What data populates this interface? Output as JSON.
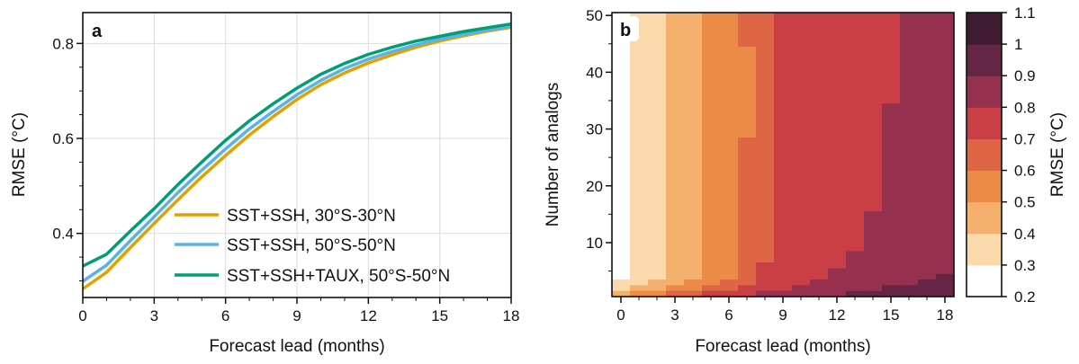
{
  "chart_data": [
    {
      "panel": "a",
      "type": "line",
      "xlabel": "Forecast lead (months)",
      "ylabel": "RMSE (°C)",
      "xlim": [
        0,
        18
      ],
      "ylim": [
        0.265,
        0.865
      ],
      "xticks": [
        0,
        3,
        6,
        9,
        12,
        15,
        18
      ],
      "yticks": [
        0.4,
        0.6,
        0.8
      ],
      "ytick_labels": [
        "0.4",
        "0.6",
        "0.8"
      ],
      "grid": true,
      "legend_position": "bottom-right",
      "x": [
        0,
        1,
        2,
        3,
        4,
        5,
        6,
        7,
        8,
        9,
        10,
        11,
        12,
        13,
        14,
        15,
        16,
        17,
        18
      ],
      "series": [
        {
          "name": "SST+SSH, 30°S-30°N",
          "color": "#E69F00",
          "values": [
            0.283,
            0.318,
            0.37,
            0.421,
            0.471,
            0.519,
            0.564,
            0.607,
            0.646,
            0.682,
            0.713,
            0.738,
            0.759,
            0.776,
            0.792,
            0.805,
            0.816,
            0.826,
            0.834
          ]
        },
        {
          "name": "SST+SSH, 50°S-50°N",
          "color": "#56B4E9",
          "values": [
            0.299,
            0.333,
            0.385,
            0.435,
            0.486,
            0.533,
            0.578,
            0.62,
            0.657,
            0.692,
            0.722,
            0.747,
            0.767,
            0.783,
            0.797,
            0.809,
            0.819,
            0.828,
            0.836
          ]
        },
        {
          "name": "SST+SSH+TAUX, 50°S-50°N",
          "color": "#009E73",
          "values": [
            0.331,
            0.356,
            0.405,
            0.452,
            0.503,
            0.55,
            0.596,
            0.637,
            0.673,
            0.706,
            0.735,
            0.758,
            0.777,
            0.792,
            0.805,
            0.815,
            0.825,
            0.833,
            0.841
          ]
        }
      ]
    },
    {
      "panel": "b",
      "type": "heatmap",
      "xlabel": "Forecast lead (months)",
      "ylabel": "Number of analogs",
      "xlim": [
        -0.5,
        18.5
      ],
      "ylim": [
        0.5,
        50.5
      ],
      "xticks": [
        0,
        3,
        6,
        9,
        12,
        15,
        18
      ],
      "yticks": [
        10,
        20,
        30,
        40,
        50
      ],
      "colorbar": {
        "label": "RMSE (°C)",
        "boundaries": [
          0.2,
          0.3,
          0.4,
          0.5,
          0.6,
          0.7,
          0.8,
          0.9,
          1.0,
          1.1
        ],
        "tick_labels": [
          "0.2",
          "0.3",
          "0.4",
          "0.5",
          "0.6",
          "0.7",
          "0.8",
          "0.9",
          "1",
          "1.1"
        ],
        "colors": [
          "#ffffff",
          "#fbd9aa",
          "#f5b06e",
          "#ec8a48",
          "#de6645",
          "#c93f45",
          "#95314f",
          "#652545",
          "#3e1b30"
        ]
      },
      "level_rows": [
        {
          "from": 45,
          "to": 50,
          "levels": [
            0,
            1,
            1,
            2,
            2,
            3,
            3,
            4,
            4,
            5,
            5,
            5,
            5,
            5,
            5,
            5,
            6,
            6,
            6
          ]
        },
        {
          "from": 35,
          "to": 44,
          "levels": [
            0,
            1,
            1,
            2,
            2,
            3,
            3,
            3,
            4,
            5,
            5,
            5,
            5,
            5,
            5,
            5,
            6,
            6,
            6
          ]
        },
        {
          "from": 29,
          "to": 34,
          "levels": [
            0,
            1,
            1,
            2,
            2,
            3,
            3,
            3,
            4,
            5,
            5,
            5,
            5,
            5,
            5,
            6,
            6,
            6,
            6
          ]
        },
        {
          "from": 16,
          "to": 28,
          "levels": [
            0,
            1,
            1,
            2,
            2,
            3,
            3,
            4,
            4,
            5,
            5,
            5,
            5,
            5,
            5,
            6,
            6,
            6,
            6
          ]
        },
        {
          "from": 11,
          "to": 15,
          "levels": [
            0,
            1,
            1,
            2,
            2,
            3,
            3,
            4,
            4,
            5,
            5,
            5,
            5,
            5,
            6,
            6,
            6,
            6,
            6
          ]
        },
        {
          "from": 9,
          "to": 10,
          "levels": [
            0,
            1,
            1,
            2,
            2,
            3,
            3,
            4,
            4,
            5,
            5,
            5,
            5,
            5,
            6,
            6,
            6,
            6,
            6
          ]
        },
        {
          "from": 7,
          "to": 8,
          "levels": [
            0,
            1,
            1,
            2,
            2,
            3,
            3,
            4,
            4,
            5,
            5,
            5,
            5,
            6,
            6,
            6,
            6,
            6,
            6
          ]
        },
        {
          "from": 6,
          "to": 6,
          "levels": [
            0,
            1,
            1,
            2,
            2,
            3,
            3,
            4,
            5,
            5,
            5,
            5,
            5,
            6,
            6,
            6,
            6,
            6,
            6
          ]
        },
        {
          "from": 5,
          "to": 5,
          "levels": [
            0,
            1,
            1,
            2,
            2,
            3,
            3,
            4,
            5,
            5,
            5,
            5,
            6,
            6,
            6,
            6,
            6,
            6,
            6
          ]
        },
        {
          "from": 4,
          "to": 4,
          "levels": [
            0,
            1,
            1,
            2,
            2,
            3,
            3,
            4,
            5,
            5,
            5,
            5,
            6,
            6,
            6,
            6,
            6,
            6,
            7
          ]
        },
        {
          "from": 3,
          "to": 3,
          "levels": [
            1,
            1,
            2,
            2,
            3,
            3,
            4,
            4,
            5,
            5,
            5,
            6,
            6,
            6,
            6,
            6,
            6,
            7,
            7
          ]
        },
        {
          "from": 2,
          "to": 2,
          "levels": [
            1,
            2,
            2,
            3,
            3,
            4,
            4,
            5,
            5,
            5,
            6,
            6,
            6,
            6,
            6,
            7,
            7,
            7,
            7
          ]
        },
        {
          "from": 1,
          "to": 1,
          "levels": [
            2,
            3,
            3,
            4,
            4,
            5,
            5,
            5,
            6,
            6,
            6,
            6,
            6,
            7,
            7,
            7,
            7,
            7,
            7
          ]
        }
      ]
    }
  ]
}
